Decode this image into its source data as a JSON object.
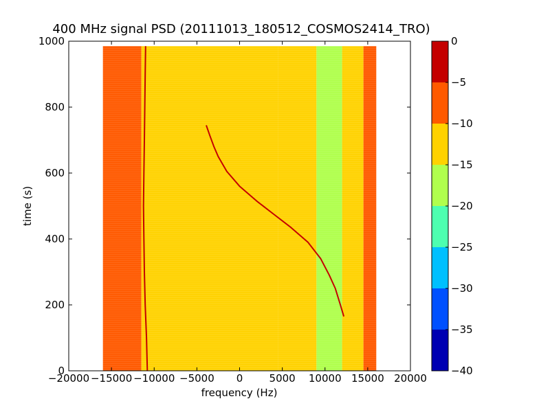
{
  "chart_data": [
    {
      "type": "heatmap",
      "title": "400 MHz signal PSD (20111013_180512_COSMOS2414_TRO)",
      "xlabel": "frequency (Hz)",
      "ylabel": "time (s)",
      "xlim": [
        -20000,
        20000
      ],
      "ylim": [
        0,
        1000
      ],
      "x_ticks": [
        -20000,
        -15000,
        -10000,
        -5000,
        0,
        5000,
        10000,
        15000,
        20000
      ],
      "x_tick_labels": [
        "−20000",
        "−15000",
        "−10000",
        "−5000",
        "0",
        "5000",
        "10000",
        "15000",
        "20000"
      ],
      "y_ticks": [
        0,
        200,
        400,
        600,
        800,
        1000
      ],
      "y_tick_labels": [
        "0",
        "200",
        "400",
        "600",
        "800",
        "1000"
      ],
      "data_extent": {
        "freq_min": -16000,
        "freq_max": 16000,
        "time_min": 0,
        "time_max": 985
      },
      "background_bands": [
        {
          "freq_from": -16000,
          "freq_to": -11500,
          "level": -8.5
        },
        {
          "freq_from": -11500,
          "freq_to": 4500,
          "level": -12.5
        },
        {
          "freq_from": 4500,
          "freq_to": 9000,
          "level": -14
        },
        {
          "freq_from": 9000,
          "freq_to": 12000,
          "level": -15.5
        },
        {
          "freq_from": 12000,
          "freq_to": 14500,
          "level": -13
        },
        {
          "freq_from": 14500,
          "freq_to": 16000,
          "level": -9
        }
      ],
      "traces": [
        {
          "level": -2,
          "points": [
            [
              -11000,
              985
            ],
            [
              -11050,
              900
            ],
            [
              -11100,
              800
            ],
            [
              -11150,
              700
            ],
            [
              -11200,
              600
            ],
            [
              -11250,
              500
            ],
            [
              -11200,
              400
            ],
            [
              -11150,
              300
            ],
            [
              -11050,
              200
            ],
            [
              -10900,
              100
            ],
            [
              -10800,
              0
            ]
          ]
        },
        {
          "level": -2,
          "points": [
            [
              -3900,
              745
            ],
            [
              -3500,
              715
            ],
            [
              -3000,
              680
            ],
            [
              -2500,
              650
            ],
            [
              -1500,
              605
            ],
            [
              0,
              560
            ],
            [
              2000,
              515
            ],
            [
              4000,
              475
            ],
            [
              6000,
              435
            ],
            [
              8000,
              390
            ],
            [
              9500,
              340
            ],
            [
              10500,
              290
            ],
            [
              11200,
              250
            ],
            [
              11800,
              200
            ],
            [
              12200,
              165
            ]
          ]
        }
      ],
      "colorbar": {
        "min": -40,
        "max": 0,
        "ticks": [
          0,
          -5,
          -10,
          -15,
          -20,
          -25,
          -30,
          -35,
          -40
        ],
        "tick_labels": [
          "0",
          "−5",
          "−10",
          "−15",
          "−20",
          "−25",
          "−30",
          "−35",
          "−40"
        ],
        "levels": [
          {
            "from": -40,
            "to": -35,
            "color": "#0000b2"
          },
          {
            "from": -35,
            "to": -30,
            "color": "#0050ff"
          },
          {
            "from": -30,
            "to": -25,
            "color": "#00c0ff"
          },
          {
            "from": -25,
            "to": -20,
            "color": "#4dffb0"
          },
          {
            "from": -20,
            "to": -15,
            "color": "#b0ff4d"
          },
          {
            "from": -15,
            "to": -10,
            "color": "#ffd200"
          },
          {
            "from": -10,
            "to": -5,
            "color": "#ff5a00"
          },
          {
            "from": -5,
            "to": 0,
            "color": "#c40000"
          }
        ]
      }
    }
  ]
}
